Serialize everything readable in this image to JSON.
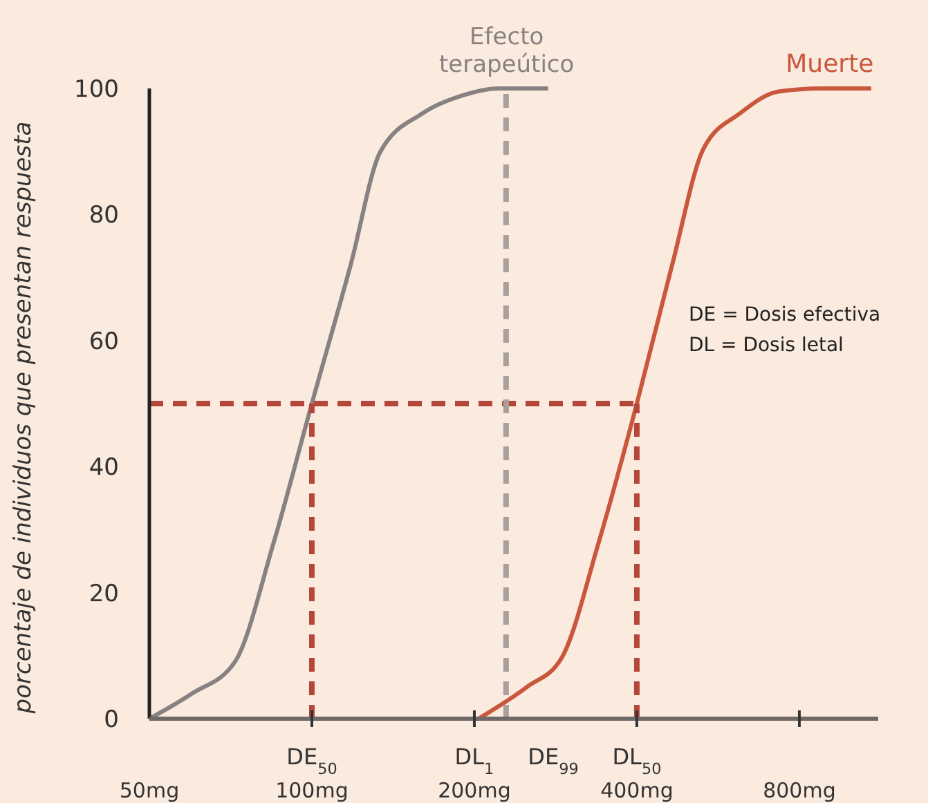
{
  "chart_data": {
    "type": "line",
    "ylabel": "porcentaje de individuos que presentan respuesta",
    "log": "x",
    "xlim": [
      50,
      1120
    ],
    "ylim": [
      0,
      100
    ],
    "xticks": [
      {
        "value": 50,
        "label": "50mg"
      },
      {
        "value": 100,
        "label": "100mg"
      },
      {
        "value": 200,
        "label": "200mg"
      },
      {
        "value": 400,
        "label": "400mg"
      },
      {
        "value": 800,
        "label": "800mg"
      }
    ],
    "yticks": [
      0,
      20,
      40,
      60,
      80,
      100
    ],
    "grid": false,
    "series": [
      {
        "name": "Efecto terapeútico",
        "color": "#878281",
        "line_style": "solid",
        "x": [
          50,
          60,
          72,
          85,
          100,
          118,
          134,
          160,
          192,
          222,
          274
        ],
        "values": [
          0,
          4,
          9,
          28,
          50,
          72,
          90,
          96,
          99,
          100,
          100
        ]
      },
      {
        "name": "Muerte",
        "color": "#c9573b",
        "line_style": "solid",
        "x": [
          203.6,
          250,
          290,
          340,
          400,
          465,
          532,
          620,
          732,
          880,
          1087
        ],
        "values": [
          0,
          5,
          9.6,
          28,
          50,
          72,
          90.5,
          96,
          99.5,
          100,
          100
        ]
      },
      {
        "color": "#b5473a",
        "line_style": "dashed",
        "x": [
          50,
          400
        ],
        "values": [
          50,
          50
        ]
      },
      {
        "color": "#b5473a",
        "line_style": "dashed",
        "x": [
          100,
          100
        ],
        "values": [
          0,
          50
        ]
      },
      {
        "color": "#b5473a",
        "line_style": "dashed",
        "x": [
          400,
          400
        ],
        "values": [
          0,
          50
        ]
      },
      {
        "color": "#a8a09c",
        "line_style": "dashed",
        "x": [
          229,
          229
        ],
        "values": [
          0,
          100
        ]
      }
    ],
    "annotations": [
      {
        "text": "DE$_{50}$",
        "x": 100,
        "y": 0
      },
      {
        "text": "DL$_{1}$",
        "x": 200,
        "y": 0
      },
      "DE$_{99}$",
      {
        "text": "DL$_{50}$",
        "x": 400,
        "y": 0
      },
      "DE = Dosis efectiva",
      "DL = Dosis letal"
    ]
  }
}
